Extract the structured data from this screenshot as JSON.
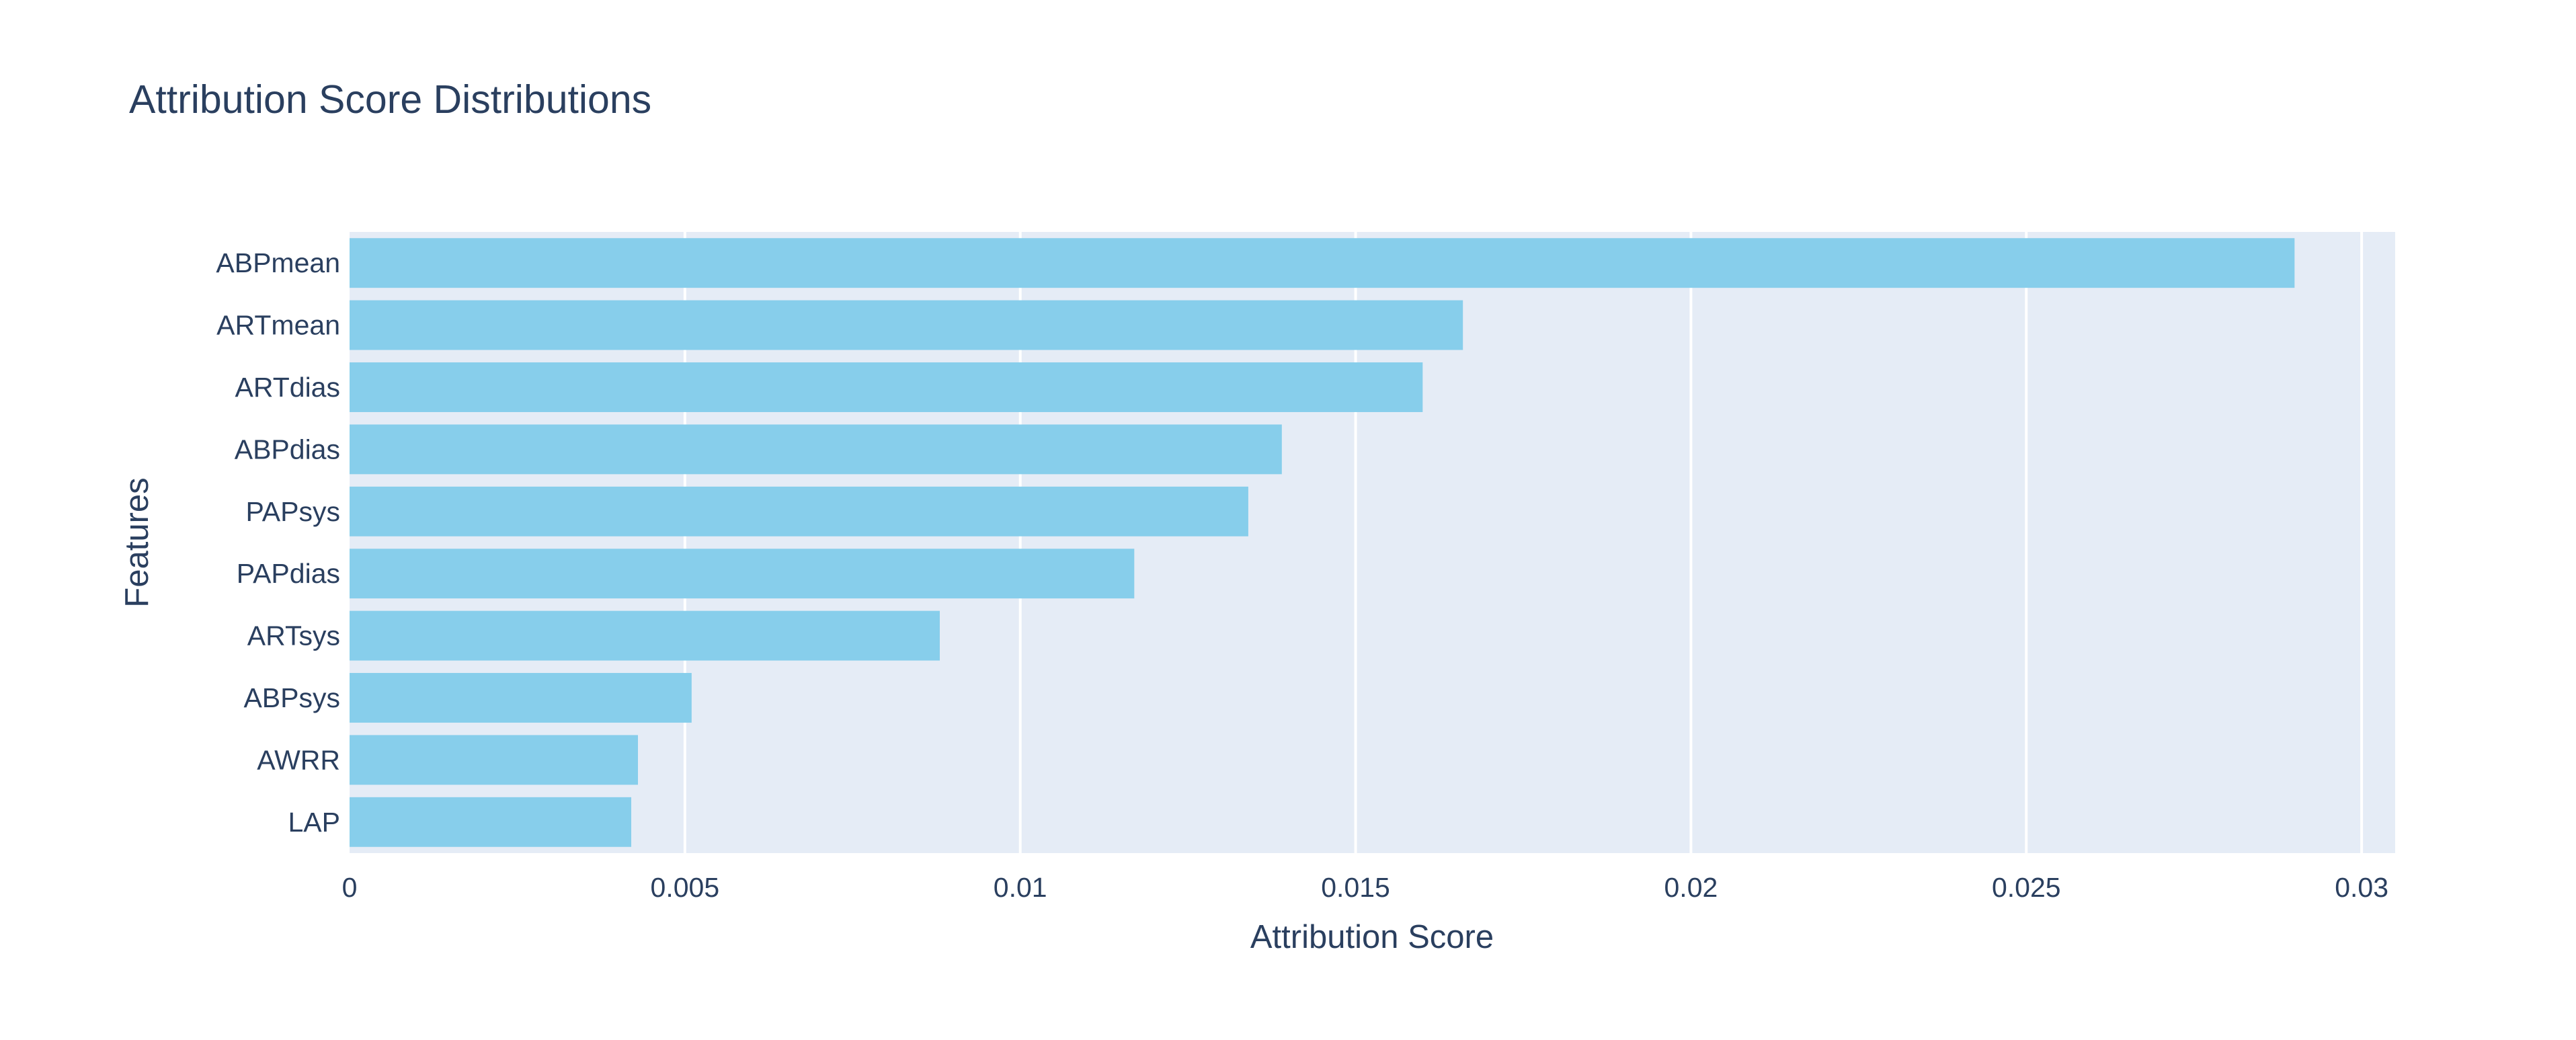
{
  "chart_data": {
    "type": "bar",
    "orientation": "horizontal",
    "title": "Attribution Score Distributions",
    "xlabel": "Attribution Score",
    "ylabel": "Features",
    "categories": [
      "ABPmean",
      "ARTmean",
      "ARTdias",
      "ABPdias",
      "PAPsys",
      "PAPdias",
      "ARTsys",
      "ABPsys",
      "AWRR",
      "LAP"
    ],
    "values": [
      0.029,
      0.0166,
      0.016,
      0.0139,
      0.0134,
      0.0117,
      0.0088,
      0.0051,
      0.0043,
      0.0042
    ],
    "xlim": [
      0,
      0.0305
    ],
    "xticks": [
      0,
      0.005,
      0.01,
      0.015,
      0.02,
      0.025,
      0.03
    ],
    "xtick_labels": [
      "0",
      "0.005",
      "0.01",
      "0.015",
      "0.02",
      "0.025",
      "0.03"
    ],
    "grid": true,
    "colors": {
      "bar": "#87ceeb",
      "plot_background": "#e5ecf6",
      "grid": "#ffffff",
      "text": "#2a3f5f"
    }
  }
}
